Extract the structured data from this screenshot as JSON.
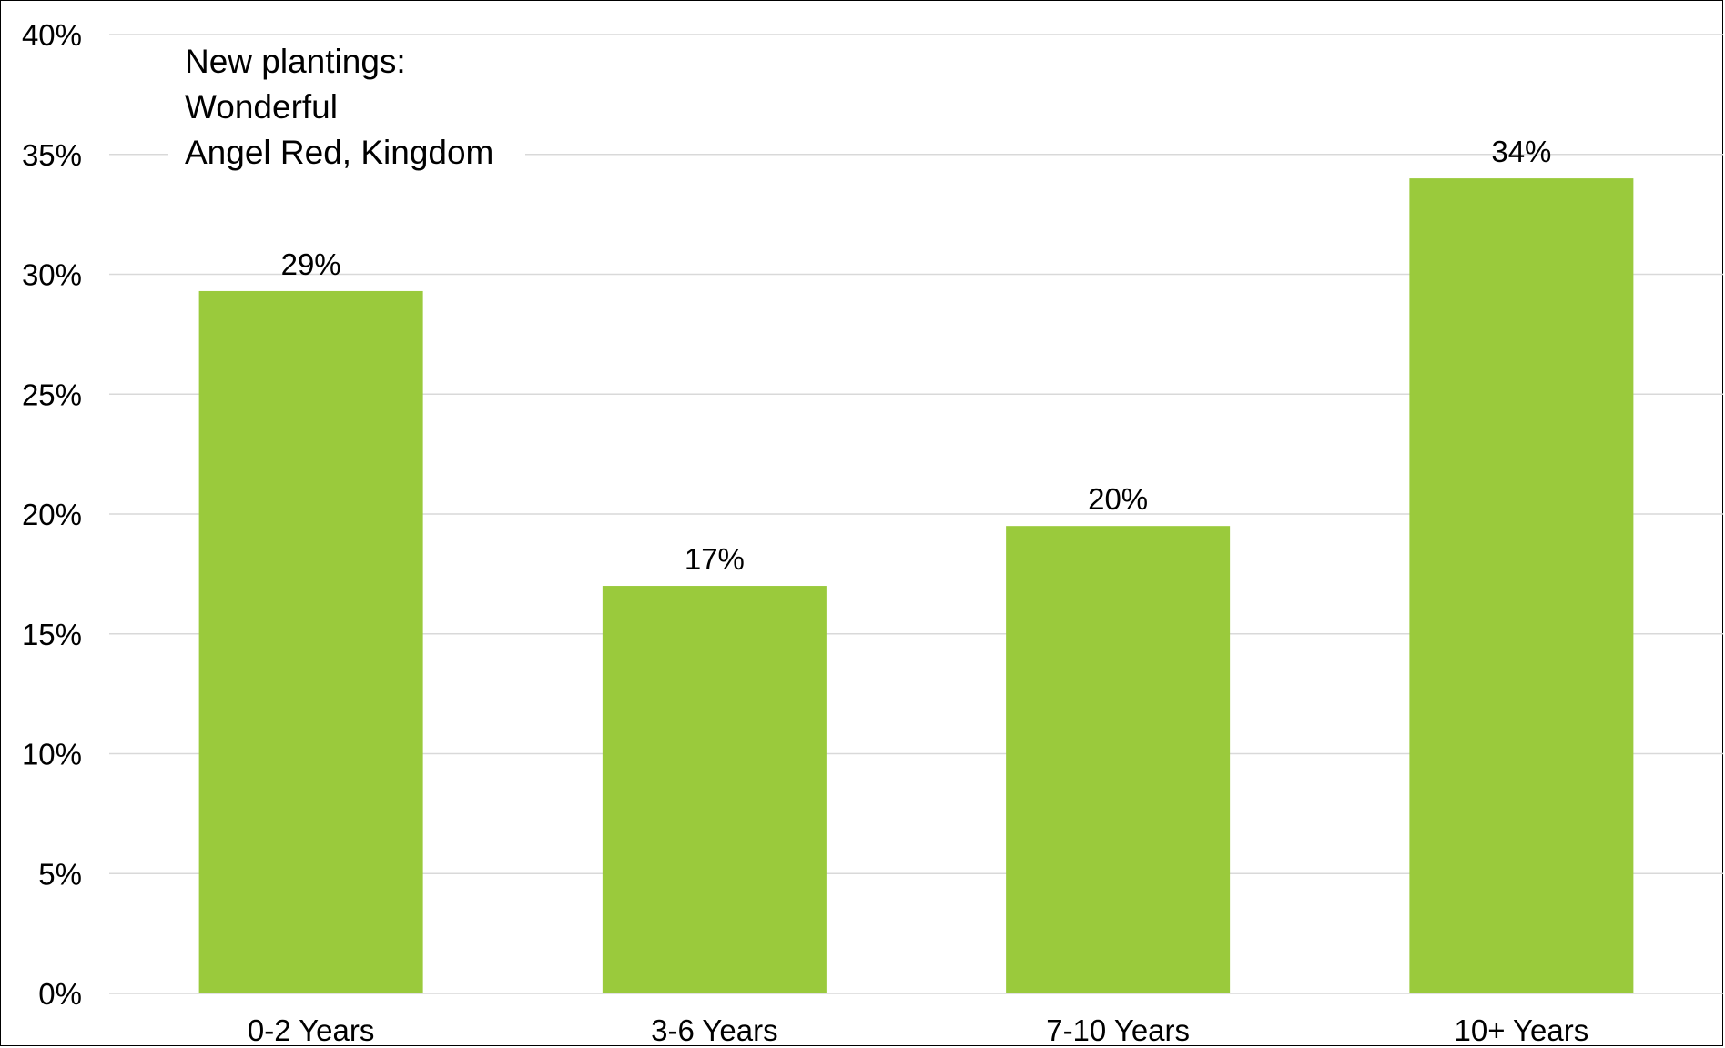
{
  "chart_data": {
    "type": "bar",
    "categories": [
      "0-2 Years",
      "3-6 Years",
      "7-10 Years",
      "10+ Years"
    ],
    "values": [
      29.3,
      17.0,
      19.5,
      34.0
    ],
    "data_labels": [
      "29%",
      "17%",
      "20%",
      "34%"
    ],
    "ylim": [
      0,
      40
    ],
    "yticks": [
      0,
      5,
      10,
      15,
      20,
      25,
      30,
      35,
      40
    ],
    "ytick_labels": [
      "0%",
      "5%",
      "10%",
      "15%",
      "20%",
      "25%",
      "30%",
      "35%",
      "40%"
    ],
    "annotation": [
      "New plantings:",
      "Wonderful",
      "Angel Red, Kingdom"
    ],
    "grid": true,
    "legend": "none",
    "bar_color": "#9aca3c",
    "grid_color": "#d9d9d9"
  }
}
